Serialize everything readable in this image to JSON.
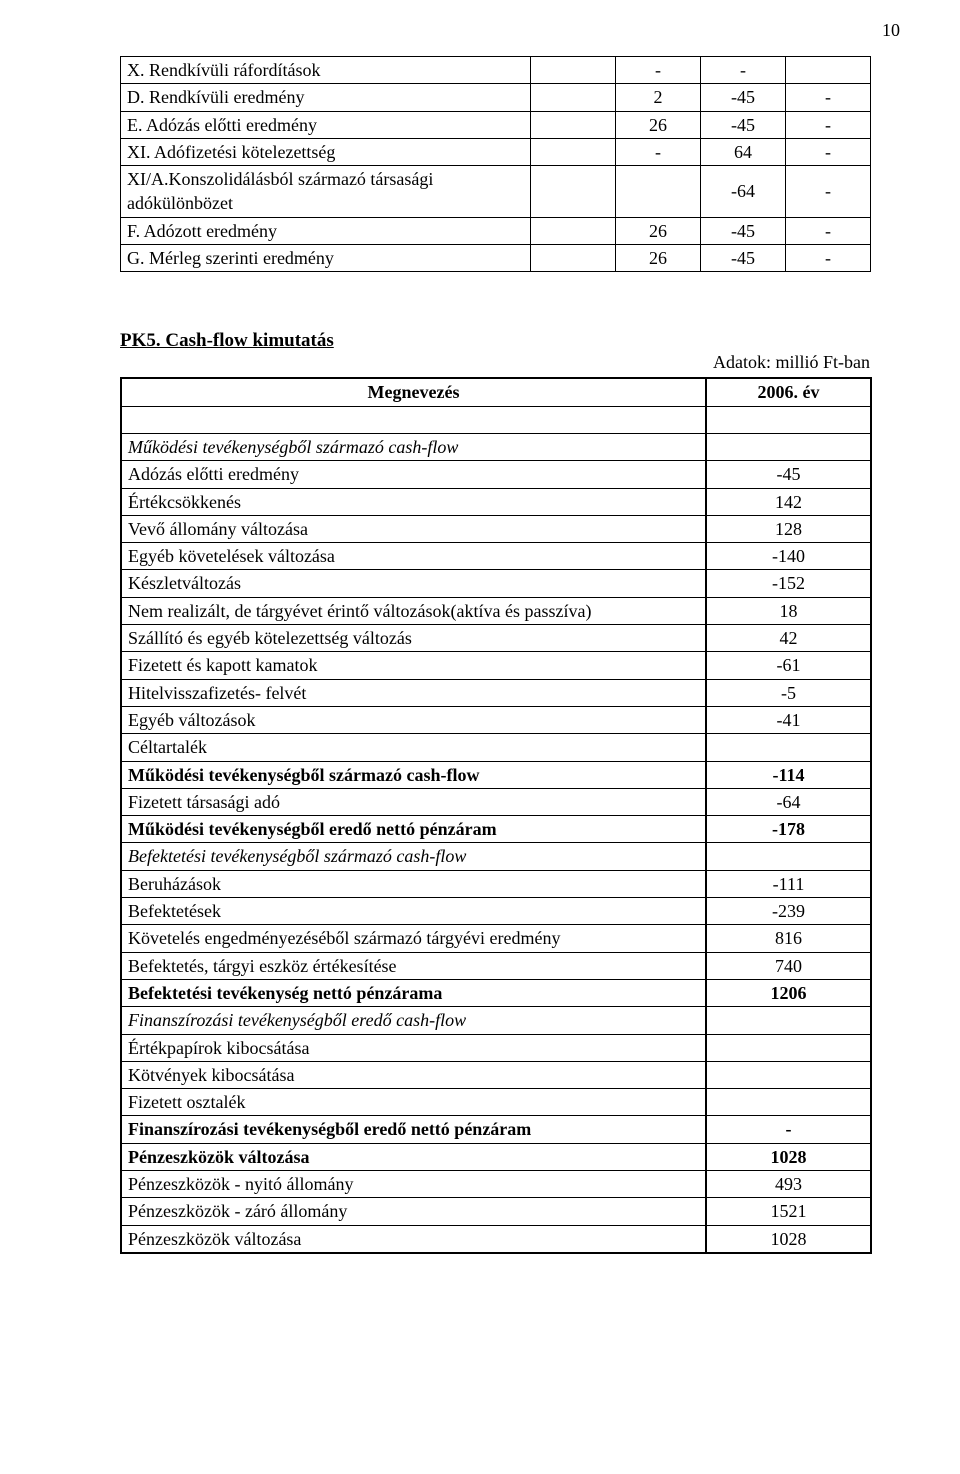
{
  "pageNumber": "10",
  "table1": {
    "rows": [
      {
        "label": "X. Rendkívüli ráfordítások",
        "c2": "",
        "c3": "-",
        "c4": "-",
        "c5": ""
      },
      {
        "label": "D. Rendkívüli eredmény",
        "c2": "",
        "c3": "2",
        "c4": "-45",
        "c5": "-"
      },
      {
        "label": "E. Adózás előtti eredmény",
        "c2": "",
        "c3": "26",
        "c4": "-45",
        "c5": "-"
      },
      {
        "label": "XI. Adófizetési kötelezettség",
        "c2": "",
        "c3": "-",
        "c4": "64",
        "c5": "-"
      },
      {
        "label": "XI/A.Konszolidálásból származó társasági  adókülönbözet",
        "c2": "",
        "c3": "",
        "c4": "-64",
        "c5": "-"
      },
      {
        "label": "F. Adózott eredmény",
        "c2": "",
        "c3": "26",
        "c4": "-45",
        "c5": "-"
      },
      {
        "label": "G. Mérleg szerinti eredmény",
        "c2": "",
        "c3": "26",
        "c4": "-45",
        "c5": "-"
      }
    ]
  },
  "pk5": {
    "title": "PK5. Cash-flow kimutatás",
    "units": "Adatok: millió Ft-ban",
    "header": {
      "left": "Megnevezés",
      "right": "2006. év"
    }
  },
  "cashflow": [
    {
      "label": "Működési tevékenységből származó cash-flow",
      "value": "",
      "italic": true
    },
    {
      "label": "Adózás előtti eredmény",
      "value": "-45"
    },
    {
      "label": "Értékcsökkenés",
      "value": "142"
    },
    {
      "label": "Vevő állomány változása",
      "value": "128"
    },
    {
      "label": "Egyéb követelések változása",
      "value": "-140"
    },
    {
      "label": "Készletváltozás",
      "value": "-152"
    },
    {
      "label": "Nem realizált, de tárgyévet érintő változások(aktíva és passzíva)",
      "value": "18"
    },
    {
      "label": "Szállító és egyéb kötelezettség változás",
      "value": "42"
    },
    {
      "label": "Fizetett és kapott kamatok",
      "value": "-61"
    },
    {
      "label": "Hitelvisszafizetés- felvét",
      "value": "-5"
    },
    {
      "label": "Egyéb változások",
      "value": "-41"
    },
    {
      "label": "Céltartalék",
      "value": ""
    },
    {
      "label": "Működési tevékenységből származó cash-flow",
      "value": "-114",
      "bold": true
    },
    {
      "label": "Fizetett társasági adó",
      "value": "-64"
    },
    {
      "label": "Működési tevékenységből eredő nettó pénzáram",
      "value": "-178",
      "bold": true
    },
    {
      "label": "Befektetési tevékenységből származó cash-flow",
      "value": "",
      "italic": true
    },
    {
      "label": "Beruházások",
      "value": "-111"
    },
    {
      "label": "Befektetések",
      "value": "-239"
    },
    {
      "label": "Követelés engedményezéséből származó tárgyévi eredmény",
      "value": "816"
    },
    {
      "label": "Befektetés, tárgyi eszköz értékesítése",
      "value": "740"
    },
    {
      "label": "Befektetési tevékenység nettó pénzárama",
      "value": "1206",
      "bold": true
    },
    {
      "label": "Finanszírozási tevékenységből eredő cash-flow",
      "value": "",
      "italic": true
    },
    {
      "label": "Értékpapírok kibocsátása",
      "value": ""
    },
    {
      "label": "Kötvények kibocsátása",
      "value": ""
    },
    {
      "label": "Fizetett osztalék",
      "value": ""
    },
    {
      "label": "Finanszírozási tevékenységből eredő nettó pénzáram",
      "value": "-",
      "bold": true
    },
    {
      "label": "Pénzeszközök változása",
      "value": "1028",
      "bold": true
    },
    {
      "label": "Pénzeszközök - nyitó állomány",
      "value": "493"
    },
    {
      "label": "Pénzeszközök - záró állomány",
      "value": "1521"
    },
    {
      "label": "Pénzeszközök változása",
      "value": "1028"
    }
  ]
}
